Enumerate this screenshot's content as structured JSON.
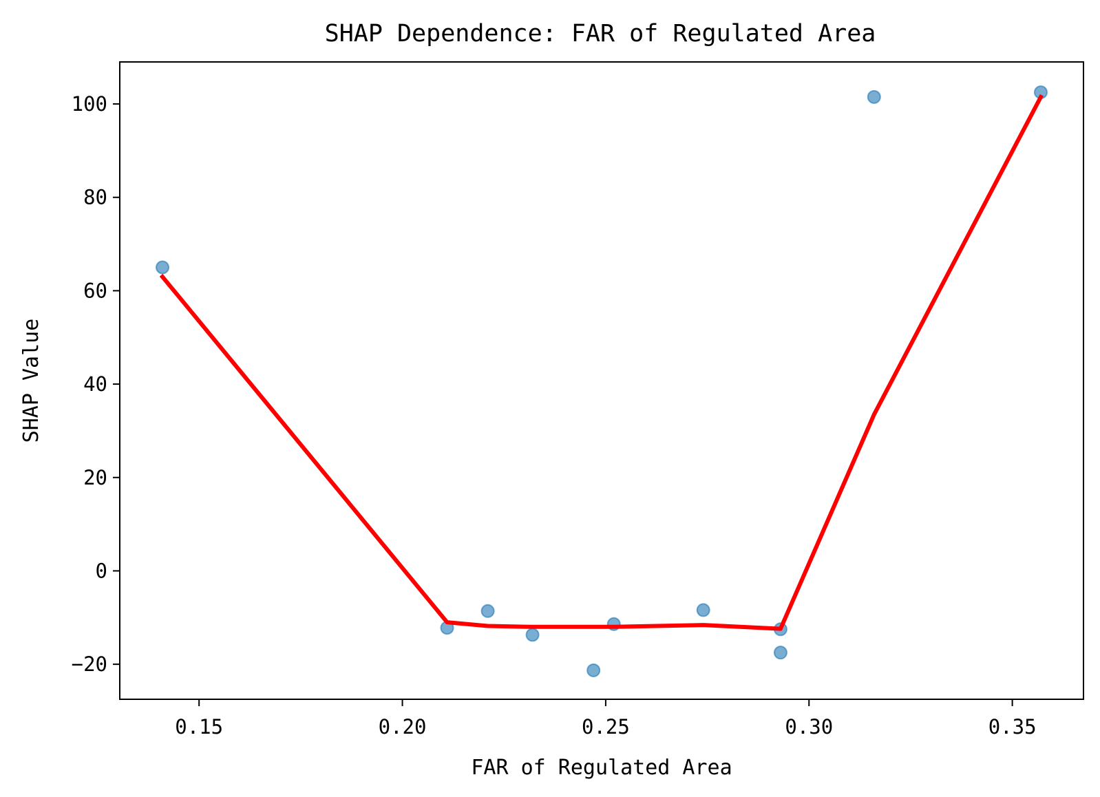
{
  "chart_data": {
    "type": "scatter",
    "title": "SHAP Dependence: FAR of Regulated Area",
    "xlabel": "FAR of Regulated Area",
    "ylabel": "SHAP Value",
    "xlim": [
      0.1305,
      0.3675
    ],
    "ylim": [
      -27.5,
      109
    ],
    "xticks": [
      0.15,
      0.2,
      0.25,
      0.3,
      0.35
    ],
    "xtick_labels": [
      "0.15",
      "0.20",
      "0.25",
      "0.30",
      "0.35"
    ],
    "yticks": [
      -20,
      0,
      20,
      40,
      60,
      80,
      100
    ],
    "ytick_labels": [
      "−20",
      "0",
      "20",
      "40",
      "60",
      "80",
      "100"
    ],
    "grid": false,
    "series": [
      {
        "kind": "scatter",
        "color": "#1f77b4",
        "x": [
          0.141,
          0.211,
          0.221,
          0.232,
          0.247,
          0.252,
          0.274,
          0.293,
          0.293,
          0.316,
          0.357
        ],
        "y": [
          65.0,
          -12.2,
          -8.6,
          -13.7,
          -21.3,
          -11.4,
          -8.4,
          -12.5,
          -17.5,
          101.5,
          102.5
        ]
      },
      {
        "kind": "line",
        "color": "#ff0000",
        "x": [
          0.141,
          0.211,
          0.221,
          0.232,
          0.252,
          0.274,
          0.293,
          0.316,
          0.357
        ],
        "y": [
          63.0,
          -11.0,
          -11.8,
          -12.0,
          -12.0,
          -11.6,
          -12.4,
          33.5,
          101.5
        ]
      }
    ]
  }
}
